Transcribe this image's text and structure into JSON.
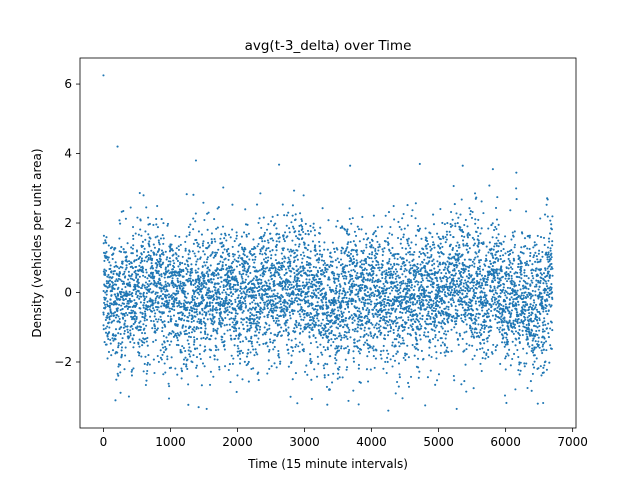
{
  "chart_data": {
    "type": "scatter",
    "title": "avg(t-3_delta) over Time",
    "xlabel": "Time (15 minute intervals)",
    "ylabel": "Density (vehicles per unit area)",
    "xlim": [
      -350,
      7050
    ],
    "ylim": [
      -3.9,
      6.75
    ],
    "xticks": [
      0,
      1000,
      2000,
      3000,
      4000,
      5000,
      6000,
      7000
    ],
    "xtick_labels": [
      "0",
      "1000",
      "2000",
      "3000",
      "4000",
      "5000",
      "6000",
      "7000"
    ],
    "yticks": [
      -2,
      0,
      2,
      4,
      6
    ],
    "ytick_labels": [
      "−2",
      "0",
      "2",
      "4",
      "6"
    ],
    "grid": false,
    "marker_color": "#1f77b4",
    "n_points": 6700,
    "x_range_of_points": [
      0,
      6700
    ],
    "center_band": [
      -1.5,
      1.5
    ],
    "typical_spread": [
      -3.2,
      3.0
    ],
    "notable_points": [
      {
        "x": 0,
        "y": 6.25
      },
      {
        "x": 210,
        "y": 4.2
      },
      {
        "x": 1380,
        "y": 3.8
      },
      {
        "x": 2620,
        "y": 3.68
      },
      {
        "x": 3680,
        "y": 3.65
      },
      {
        "x": 4720,
        "y": 3.7
      },
      {
        "x": 5360,
        "y": 3.65
      },
      {
        "x": 5810,
        "y": 3.55
      },
      {
        "x": 6160,
        "y": 3.45
      },
      {
        "x": 1540,
        "y": -3.35
      },
      {
        "x": 1420,
        "y": -3.3
      },
      {
        "x": 4250,
        "y": -3.4
      },
      {
        "x": 5270,
        "y": -3.35
      },
      {
        "x": 4800,
        "y": -3.25
      },
      {
        "x": 6480,
        "y": -3.2
      },
      {
        "x": 6560,
        "y": -3.18
      }
    ]
  }
}
